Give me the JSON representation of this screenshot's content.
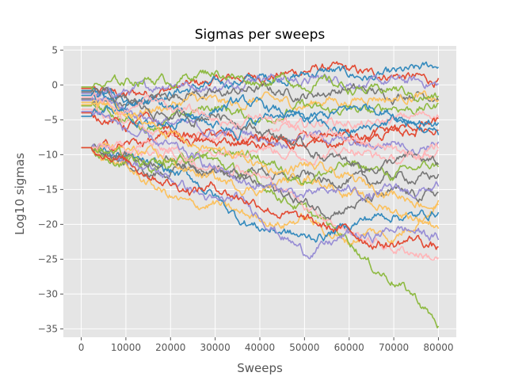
{
  "chart_data": {
    "type": "line",
    "title": "Sigmas per sweeps",
    "xlabel": "Sweeps",
    "ylabel": "Log10 sigmas",
    "xlim": [
      -4000,
      84000
    ],
    "ylim": [
      -36.2,
      5.6
    ],
    "x_ticks": [
      0,
      10000,
      20000,
      30000,
      40000,
      50000,
      60000,
      70000,
      80000
    ],
    "x_tick_labels": [
      "0",
      "10000",
      "20000",
      "30000",
      "40000",
      "50000",
      "60000",
      "70000",
      "80000"
    ],
    "y_ticks": [
      5,
      0,
      -5,
      -10,
      -15,
      -20,
      -25,
      -30,
      -35
    ],
    "y_tick_labels": [
      "5",
      "0",
      "−10",
      "−15",
      "−20",
      "−25",
      "−30",
      "−35"
    ],
    "y_tick_labels_full": [
      "5",
      "0",
      "−5",
      "−10",
      "−15",
      "−20",
      "−25",
      "−30",
      "−35"
    ],
    "grid": true,
    "legend": "none",
    "background": "#E5E5E5",
    "grid_color": "#FFFFFF",
    "colors": [
      "#E24A33",
      "#348ABD",
      "#988ED5",
      "#777777",
      "#FBC15E",
      "#8EBA42",
      "#FFB5B8"
    ],
    "x_knots": [
      0,
      2500,
      5000,
      10000,
      15000,
      20000,
      25000,
      30000,
      35000,
      40000,
      45000,
      50000,
      55000,
      60000,
      65000,
      70000,
      75000,
      80000
    ],
    "series": [
      {
        "values": [
          -0.5,
          -0.5,
          -0.8,
          -1.5,
          -1.0,
          -0.5,
          0.0,
          0.5,
          1.0,
          1.2,
          1.5,
          2.0,
          2.5,
          2.0,
          1.5,
          1.5,
          1.0,
          0.5
        ]
      },
      {
        "values": [
          -0.8,
          -0.8,
          -1.0,
          -2.0,
          -1.5,
          -1.0,
          -0.5,
          0.0,
          0.5,
          1.0,
          1.0,
          1.5,
          2.0,
          1.5,
          1.0,
          1.5,
          2.0,
          3.0
        ]
      },
      {
        "values": [
          -1.2,
          -1.2,
          -1.5,
          -1.0,
          -0.5,
          0.5,
          0.0,
          -0.5,
          0.5,
          1.5,
          1.0,
          0.5,
          1.0,
          0.5,
          0.0,
          0.5,
          0.5,
          0.0
        ]
      },
      {
        "values": [
          -2.0,
          -2.0,
          -2.5,
          -3.0,
          -2.0,
          -1.5,
          -1.0,
          -1.5,
          -1.0,
          -0.5,
          -1.0,
          -1.5,
          -1.0,
          -0.5,
          -1.0,
          -1.5,
          -1.0,
          -1.5
        ]
      },
      {
        "values": [
          -2.5,
          -2.5,
          -3.0,
          -4.0,
          -3.5,
          -3.0,
          -2.0,
          -2.5,
          -3.0,
          -2.0,
          -2.5,
          -3.0,
          -2.0,
          -2.5,
          -1.5,
          -2.0,
          -1.5,
          -2.5
        ]
      },
      {
        "values": [
          -3.0,
          -3.0,
          -3.5,
          -5.0,
          -6.0,
          -5.0,
          -4.0,
          -3.0,
          -4.0,
          -5.0,
          -4.0,
          -3.0,
          -4.0,
          -3.5,
          -4.0,
          -3.0,
          -3.5,
          -3.0
        ]
      },
      {
        "values": [
          -3.5,
          -3.5,
          -4.0,
          -5.5,
          -7.0,
          -6.0,
          -7.0,
          -8.0,
          -7.5,
          -7.0,
          -6.5,
          -6.0,
          -5.0,
          -5.5,
          -6.0,
          -5.0,
          -4.5,
          -4.0
        ]
      },
      {
        "values": [
          -4.0,
          -4.0,
          -4.5,
          -6.0,
          -5.0,
          -6.5,
          -7.5,
          -7.0,
          -8.0,
          -9.0,
          -8.5,
          -8.0,
          -9.0,
          -8.0,
          -7.0,
          -6.5,
          -6.0,
          -5.5
        ]
      },
      {
        "values": [
          -4.5,
          -4.5,
          -4.0,
          -3.0,
          -2.5,
          -3.5,
          -4.5,
          -3.5,
          -2.5,
          -3.0,
          -4.0,
          -5.0,
          -4.5,
          -3.5,
          -3.0,
          -4.0,
          -5.0,
          -5.5
        ]
      },
      {
        "values": [
          -2.2,
          -2.2,
          -2.0,
          -3.5,
          -4.5,
          -5.5,
          -6.0,
          -7.0,
          -6.5,
          -7.5,
          -8.0,
          -7.0,
          -7.5,
          -8.5,
          -9.0,
          -8.0,
          -9.0,
          -8.0
        ]
      },
      {
        "values": [
          -9.0,
          -9.0,
          -9.5,
          -11.5,
          -13.0,
          -12.5,
          -12.0,
          -12.5,
          -13.0,
          -12.0,
          -13.5,
          -13.0,
          -14.0,
          -13.5,
          -14.0,
          -13.0,
          -13.5,
          -13.0
        ]
      },
      {
        "values": [
          -9.0,
          -9.0,
          -10.0,
          -12.0,
          -14.0,
          -16.0,
          -17.5,
          -17.0,
          -18.5,
          -19.0,
          -20.0,
          -19.0,
          -21.0,
          -22.5,
          -21.0,
          -22.0,
          -19.5,
          -17.0
        ]
      },
      {
        "values": [
          -9.0,
          -9.0,
          -9.5,
          -11.0,
          -12.0,
          -11.5,
          -10.0,
          -11.0,
          -12.5,
          -14.0,
          -16.0,
          -18.0,
          -20.0,
          -22.0,
          -26.0,
          -28.0,
          -30.5,
          -34.5
        ]
      },
      {
        "values": [
          -9.0,
          -9.0,
          -9.2,
          -10.0,
          -9.5,
          -10.0,
          -11.0,
          -12.0,
          -11.5,
          -13.0,
          -15.0,
          -17.0,
          -19.0,
          -21.0,
          -22.5,
          -23.5,
          -24.0,
          -25.0
        ]
      },
      {
        "values": [
          -9.0,
          -9.0,
          -9.0,
          -8.5,
          -8.0,
          -7.5,
          -8.0,
          -8.5,
          -8.0,
          -7.5,
          -8.0,
          -8.5,
          -7.5,
          -7.0,
          -7.5,
          -7.0,
          -6.5,
          -6.0
        ]
      },
      {
        "values": [
          -9.0,
          -9.0,
          -9.5,
          -10.5,
          -11.5,
          -12.5,
          -13.5,
          -16.0,
          -19.0,
          -20.5,
          -21.0,
          -22.0,
          -21.5,
          -20.0,
          -19.0,
          -18.5,
          -19.0,
          -18.0
        ]
      },
      {
        "values": [
          -9.0,
          -9.0,
          -9.5,
          -10.5,
          -12.0,
          -13.5,
          -15.0,
          -17.0,
          -16.5,
          -18.5,
          -21.5,
          -24.0,
          -23.0,
          -21.5,
          -22.0,
          -20.5,
          -21.0,
          -22.0
        ]
      },
      {
        "values": [
          -9.0,
          -9.0,
          -9.5,
          -10.0,
          -11.0,
          -10.5,
          -11.5,
          -12.0,
          -13.0,
          -14.5,
          -15.5,
          -17.0,
          -18.0,
          -17.5,
          -16.5,
          -15.5,
          -16.0,
          -15.5
        ]
      },
      {
        "values": [
          -9.0,
          -9.0,
          -8.8,
          -9.5,
          -10.0,
          -11.0,
          -12.5,
          -13.5,
          -14.5,
          -15.0,
          -14.0,
          -13.0,
          -14.0,
          -15.5,
          -17.0,
          -18.0,
          -19.0,
          -20.0
        ]
      },
      {
        "values": [
          -9.0,
          -9.0,
          -9.3,
          -10.5,
          -12.0,
          -11.0,
          -10.5,
          -10.0,
          -9.5,
          -10.5,
          -12.0,
          -13.5,
          -12.5,
          -11.5,
          -12.0,
          -13.0,
          -12.0,
          -11.5
        ]
      },
      {
        "values": [
          -9.0,
          -9.0,
          -9.1,
          -9.0,
          -8.5,
          -9.0,
          -10.0,
          -9.5,
          -9.0,
          -8.5,
          -9.5,
          -10.5,
          -10.0,
          -9.0,
          -10.0,
          -11.0,
          -10.5,
          -10.0
        ]
      },
      {
        "values": [
          -9.0,
          -9.0,
          -9.4,
          -11.0,
          -12.5,
          -14.0,
          -15.0,
          -14.5,
          -16.0,
          -17.0,
          -18.5,
          -19.5,
          -20.5,
          -21.0,
          -22.5,
          -23.0,
          -22.0,
          -23.5
        ]
      },
      {
        "values": [
          -1.5,
          -1.5,
          -2.0,
          -4.0,
          -6.0,
          -5.0,
          -4.5,
          -5.5,
          -6.5,
          -5.0,
          -4.0,
          -5.0,
          -6.0,
          -7.0,
          -6.0,
          -5.0,
          -6.0,
          -7.0
        ]
      },
      {
        "values": [
          -3.8,
          -3.8,
          -4.2,
          -6.5,
          -8.0,
          -9.0,
          -10.5,
          -12.0,
          -13.5,
          -14.5,
          -15.0,
          -16.0,
          -15.5,
          -15.0,
          -16.0,
          -15.0,
          -15.5,
          -14.5
        ]
      },
      {
        "values": [
          -1.0,
          -1.0,
          -1.2,
          -2.5,
          -3.5,
          -4.5,
          -5.0,
          -4.0,
          -5.0,
          -6.5,
          -7.5,
          -9.0,
          -10.5,
          -11.0,
          -12.0,
          -11.0,
          -10.5,
          -11.5
        ]
      },
      {
        "values": [
          -2.8,
          -2.8,
          -3.0,
          -4.5,
          -5.5,
          -7.0,
          -8.5,
          -9.5,
          -10.0,
          -11.5,
          -12.5,
          -11.5,
          -12.5,
          -13.5,
          -14.5,
          -15.5,
          -16.5,
          -17.5
        ]
      },
      {
        "values": [
          -0.3,
          -0.3,
          -0.2,
          0.5,
          1.0,
          0.5,
          1.5,
          2.0,
          1.0,
          0.5,
          1.0,
          0.0,
          0.5,
          -0.5,
          -1.0,
          -0.5,
          -1.5,
          -2.0
        ]
      },
      {
        "values": [
          -1.8,
          -1.8,
          -2.2,
          -3.5,
          -2.0,
          -3.0,
          -4.0,
          -5.0,
          -5.5,
          -4.5,
          -5.5,
          -6.5,
          -7.0,
          -8.0,
          -9.0,
          -9.5,
          -10.0,
          -9.0
        ]
      }
    ]
  }
}
